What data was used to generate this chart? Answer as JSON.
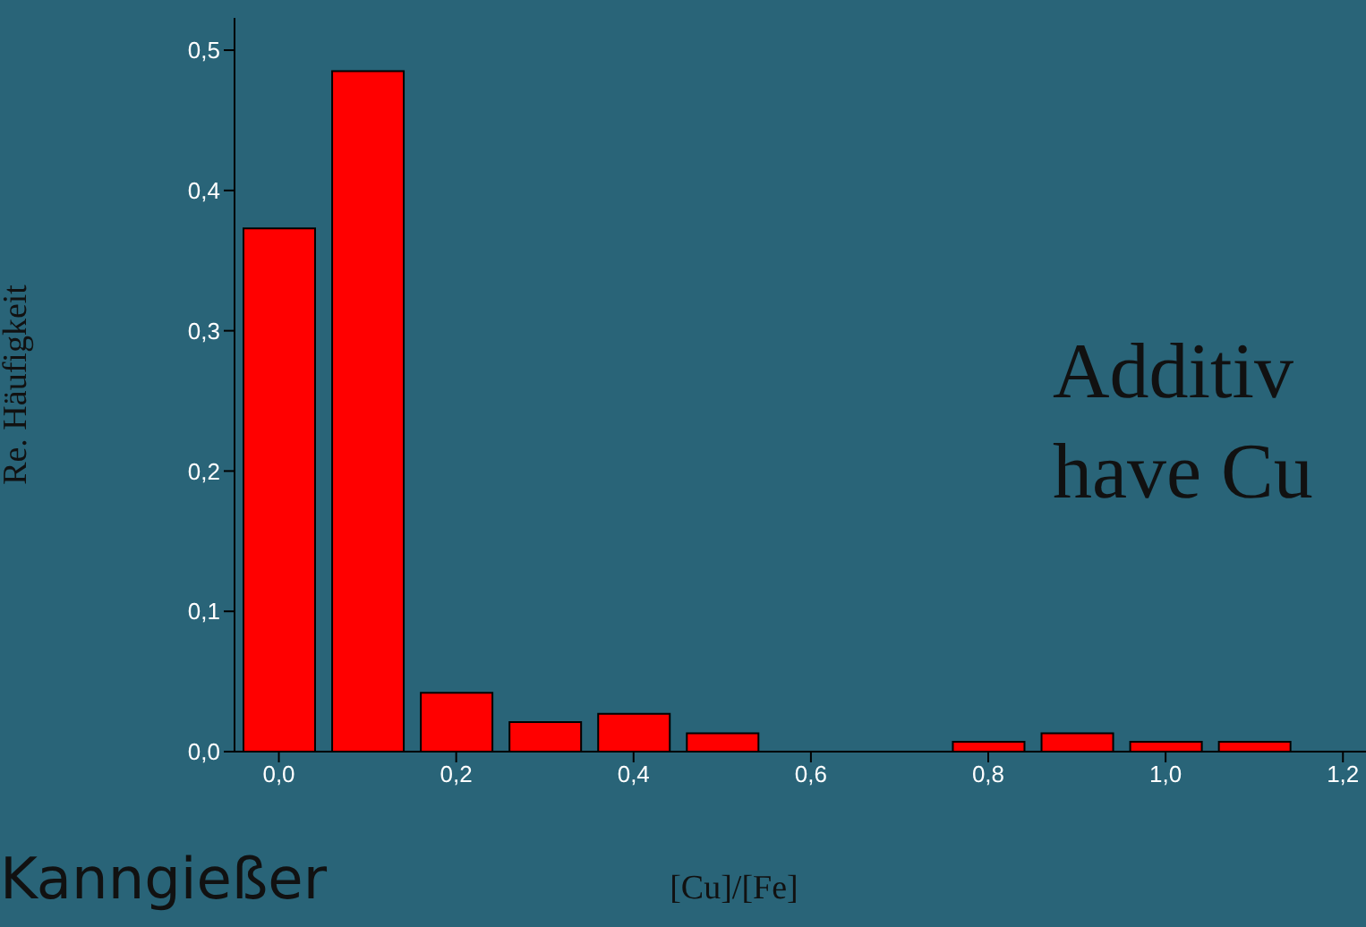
{
  "chart_data": {
    "type": "bar",
    "xlabel": "[Cu]/[Fe]",
    "ylabel": "Re. Häufigkeit",
    "color": "#ff0000",
    "x": [
      0,
      0.1,
      0.2,
      0.3,
      0.4,
      0.5,
      0.6,
      0.7,
      0.8,
      0.9,
      1.0,
      1.1
    ],
    "values": [
      0.373,
      0.485,
      0.042,
      0.021,
      0.027,
      0.013,
      0,
      0,
      0.007,
      0.013,
      0.007,
      0.007
    ],
    "xlim": [
      -0.05,
      1.226
    ],
    "xticks": [
      {
        "value": 0,
        "label": "0,0"
      },
      {
        "value": 0.2,
        "label": "0,2"
      },
      {
        "value": 0.4,
        "label": "0,4"
      },
      {
        "value": 0.6,
        "label": "0,6"
      },
      {
        "value": 0.8,
        "label": "0,8"
      },
      {
        "value": 1.0,
        "label": "1,0"
      },
      {
        "value": 1.2,
        "label": "1,2"
      }
    ],
    "ylim": [
      0,
      0.523
    ],
    "yticks": [
      {
        "value": 0,
        "label": "0,0"
      },
      {
        "value": 0.1,
        "label": "0,1"
      },
      {
        "value": 0.2,
        "label": "0,2"
      },
      {
        "value": 0.3,
        "label": "0,3"
      },
      {
        "value": 0.4,
        "label": "0,4"
      },
      {
        "value": 0.5,
        "label": "0,5"
      }
    ],
    "annotations": [
      "Additiv\nhave Cu",
      "Kanngießer"
    ]
  }
}
